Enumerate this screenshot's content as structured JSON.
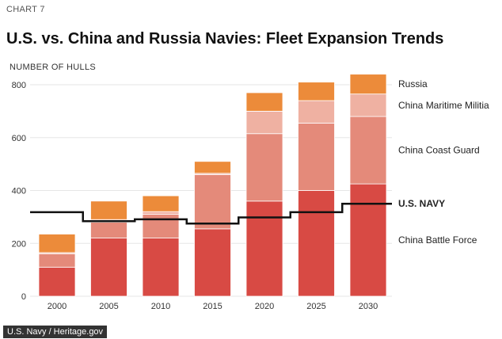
{
  "header": {
    "chart_number": "CHART 7",
    "title": "U.S. vs. China and Russia Navies: Fleet Expansion Trends",
    "unit_label": "NUMBER OF HULLS"
  },
  "credit": "U.S. Navy / Heritage.gov",
  "colors": {
    "russia": "#ec8b3a",
    "china_maritime_militia": "#efb1a2",
    "china_coast_guard": "#e48a7a",
    "china_battle_force": "#d84a44",
    "us_navy": "#111111",
    "gridline": "#e6e6e6"
  },
  "chart_data": {
    "type": "bar",
    "stacked": true,
    "categories": [
      "2000",
      "2005",
      "2010",
      "2015",
      "2020",
      "2025",
      "2030"
    ],
    "ylim": [
      0,
      800
    ],
    "yticks": [
      0,
      200,
      400,
      600,
      800
    ],
    "ylabel": "NUMBER OF HULLS",
    "grid": true,
    "series": [
      {
        "name": "China Battle Force",
        "key": "china_battle_force",
        "values": [
          110,
          220,
          220,
          255,
          360,
          400,
          425
        ]
      },
      {
        "name": "China Coast Guard",
        "key": "china_coast_guard",
        "values": [
          50,
          60,
          90,
          205,
          255,
          255,
          255
        ]
      },
      {
        "name": "China Maritime Militia",
        "key": "china_maritime_militia",
        "values": [
          5,
          10,
          10,
          5,
          85,
          85,
          85
        ]
      },
      {
        "name": "Russia",
        "key": "russia",
        "values": [
          70,
          70,
          60,
          45,
          70,
          70,
          75
        ]
      }
    ],
    "overlay": {
      "name": "U.S. NAVY",
      "type": "step",
      "values": [
        318,
        284,
        291,
        275,
        298,
        318,
        350
      ]
    },
    "legend_placement": "right, aligned with series"
  }
}
